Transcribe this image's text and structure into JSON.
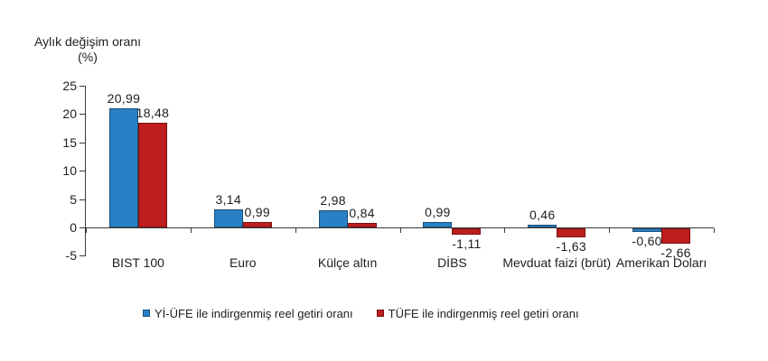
{
  "chart_data": {
    "type": "bar",
    "title": "",
    "ylabel": "Aylık değişim oranı (%)",
    "categories": [
      "BIST 100",
      "Euro",
      "Külçe altın",
      "DİBS",
      "Mevduat faizi (brüt)",
      "Amerikan Doları"
    ],
    "series": [
      {
        "name": "Yİ-ÜFE ile indirgenmiş reel getiri oranı",
        "color": "#2A80C4",
        "border_color": "#1D4F76",
        "values": [
          20.99,
          3.14,
          2.98,
          0.99,
          0.46,
          -0.6
        ],
        "value_labels": [
          "20,99",
          "3,14",
          "2,98",
          "0,99",
          "0,46",
          "-0,60"
        ]
      },
      {
        "name": "TÜFE ile indirgenmiş reel getiri oranı",
        "color": "#BE1E1E",
        "border_color": "#7A1010",
        "values": [
          18.48,
          0.99,
          0.84,
          -1.11,
          -1.63,
          -2.66
        ],
        "value_labels": [
          "18,48",
          "0,99",
          "0,84",
          "-1,11",
          "-1,63",
          "-2,66"
        ]
      }
    ],
    "ylim": [
      -5,
      25
    ],
    "yticks": [
      25,
      20,
      15,
      10,
      5,
      0,
      -5
    ],
    "grid": false,
    "legend_position": "bottom",
    "axis_color": "#3a3a3a",
    "background": "#ffffff"
  }
}
